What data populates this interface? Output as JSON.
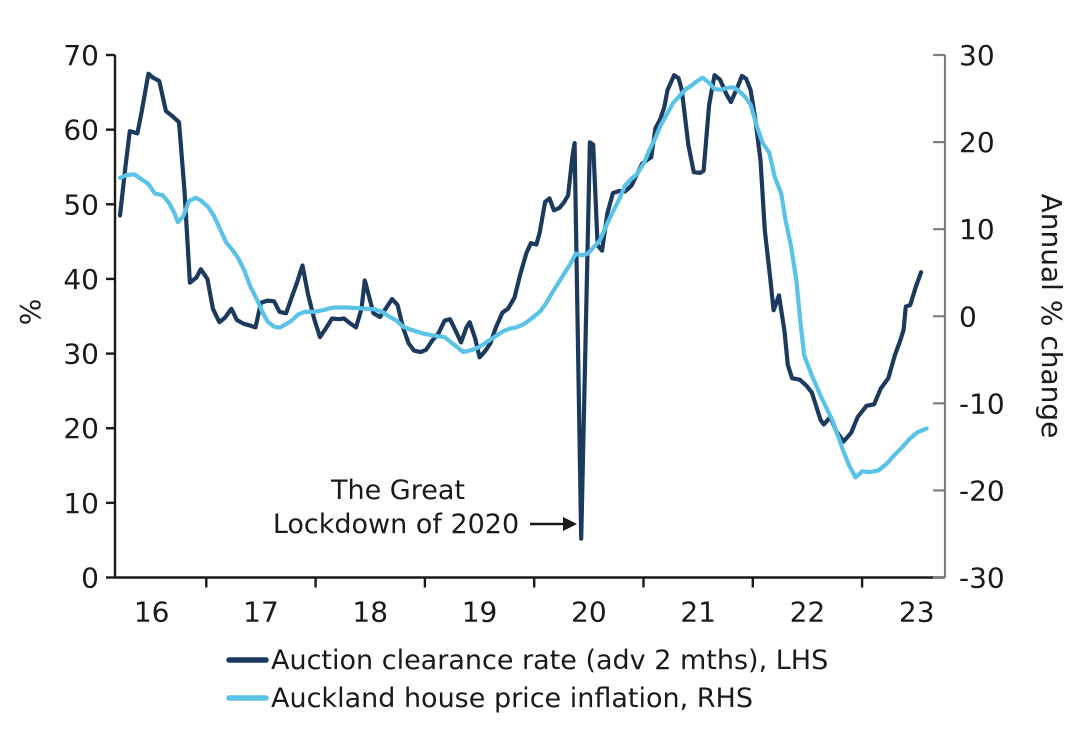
{
  "chart_data": {
    "type": "line",
    "title": "",
    "left_axis": {
      "label": "%",
      "min": 0,
      "max": 70,
      "ticks": [
        0,
        10,
        20,
        30,
        40,
        50,
        60,
        70
      ]
    },
    "right_axis": {
      "label": "Annual % change",
      "min": -30,
      "max": 30,
      "ticks": [
        -30,
        -20,
        -10,
        0,
        10,
        20,
        30
      ]
    },
    "x_axis": {
      "tick_years": [
        2017,
        2018,
        2019,
        2020,
        2021,
        2022,
        2023
      ],
      "labels": [
        {
          "year": 2016,
          "text": "16"
        },
        {
          "year": 2017,
          "text": "17"
        },
        {
          "year": 2018,
          "text": "18"
        },
        {
          "year": 2019,
          "text": "19"
        },
        {
          "year": 2020,
          "text": "20"
        },
        {
          "year": 2021,
          "text": "21"
        },
        {
          "year": 2022,
          "text": "22"
        },
        {
          "year": 2023,
          "text": "23"
        }
      ]
    },
    "grid": false,
    "legend_position": "bottom",
    "series": [
      {
        "name": "Auction clearance rate (adv 2 mths), LHS",
        "axis": "left",
        "color": "#1C3A5E",
        "points": [
          [
            2016.21,
            48.5
          ],
          [
            2016.26,
            55.0
          ],
          [
            2016.3,
            59.8
          ],
          [
            2016.37,
            59.5
          ],
          [
            2016.41,
            62.5
          ],
          [
            2016.47,
            67.5
          ],
          [
            2016.51,
            67.0
          ],
          [
            2016.57,
            66.5
          ],
          [
            2016.63,
            62.5
          ],
          [
            2016.69,
            61.8
          ],
          [
            2016.75,
            61.0
          ],
          [
            2016.8,
            52.0
          ],
          [
            2016.85,
            39.5
          ],
          [
            2016.91,
            40.2
          ],
          [
            2016.95,
            41.3
          ],
          [
            2017.01,
            40.0
          ],
          [
            2017.06,
            36.0
          ],
          [
            2017.12,
            34.2
          ],
          [
            2017.17,
            34.8
          ],
          [
            2017.23,
            36.0
          ],
          [
            2017.28,
            34.5
          ],
          [
            2017.34,
            34.0
          ],
          [
            2017.39,
            33.8
          ],
          [
            2017.45,
            33.5
          ],
          [
            2017.5,
            36.8
          ],
          [
            2017.56,
            37.1
          ],
          [
            2017.62,
            37.0
          ],
          [
            2017.67,
            35.6
          ],
          [
            2017.73,
            35.4
          ],
          [
            2017.78,
            37.5
          ],
          [
            2017.83,
            39.5
          ],
          [
            2017.88,
            41.8
          ],
          [
            2017.93,
            38.0
          ],
          [
            2017.99,
            34.5
          ],
          [
            2018.04,
            32.2
          ],
          [
            2018.1,
            33.5
          ],
          [
            2018.15,
            34.7
          ],
          [
            2018.21,
            34.6
          ],
          [
            2018.26,
            34.7
          ],
          [
            2018.32,
            34.0
          ],
          [
            2018.37,
            33.5
          ],
          [
            2018.42,
            36.0
          ],
          [
            2018.45,
            39.8
          ],
          [
            2018.5,
            37.0
          ],
          [
            2018.53,
            35.4
          ],
          [
            2018.59,
            34.9
          ],
          [
            2018.64,
            36.0
          ],
          [
            2018.7,
            37.3
          ],
          [
            2018.75,
            36.5
          ],
          [
            2018.8,
            33.5
          ],
          [
            2018.85,
            31.4
          ],
          [
            2018.9,
            30.4
          ],
          [
            2018.96,
            30.2
          ],
          [
            2019.01,
            30.5
          ],
          [
            2019.07,
            31.8
          ],
          [
            2019.12,
            32.6
          ],
          [
            2019.18,
            34.4
          ],
          [
            2019.23,
            34.6
          ],
          [
            2019.29,
            32.8
          ],
          [
            2019.33,
            31.5
          ],
          [
            2019.38,
            33.5
          ],
          [
            2019.41,
            34.2
          ],
          [
            2019.46,
            32.0
          ],
          [
            2019.5,
            29.5
          ],
          [
            2019.55,
            30.3
          ],
          [
            2019.6,
            31.4
          ],
          [
            2019.65,
            33.5
          ],
          [
            2019.71,
            35.5
          ],
          [
            2019.76,
            36.0
          ],
          [
            2019.82,
            37.5
          ],
          [
            2019.87,
            40.5
          ],
          [
            2019.93,
            43.5
          ],
          [
            2019.97,
            44.8
          ],
          [
            2020.02,
            44.6
          ],
          [
            2020.05,
            46.2
          ],
          [
            2020.1,
            50.3
          ],
          [
            2020.14,
            50.8
          ],
          [
            2020.18,
            49.2
          ],
          [
            2020.23,
            49.5
          ],
          [
            2020.27,
            50.2
          ],
          [
            2020.31,
            51.2
          ],
          [
            2020.35,
            56.5
          ],
          [
            2020.37,
            58.2
          ],
          [
            2020.43,
            5.2
          ],
          [
            2020.51,
            58.3
          ],
          [
            2020.54,
            58.0
          ],
          [
            2020.58,
            44.5
          ],
          [
            2020.62,
            43.8
          ],
          [
            2020.67,
            48.8
          ],
          [
            2020.72,
            51.5
          ],
          [
            2020.78,
            51.8
          ],
          [
            2020.83,
            51.7
          ],
          [
            2020.89,
            52.5
          ],
          [
            2020.94,
            54.0
          ],
          [
            2020.99,
            55.5
          ],
          [
            2021.03,
            55.9
          ],
          [
            2021.07,
            56.3
          ],
          [
            2021.11,
            60.2
          ],
          [
            2021.15,
            61.3
          ],
          [
            2021.19,
            63.0
          ],
          [
            2021.22,
            65.3
          ],
          [
            2021.28,
            67.3
          ],
          [
            2021.32,
            66.9
          ],
          [
            2021.35,
            65.3
          ],
          [
            2021.41,
            58.0
          ],
          [
            2021.46,
            54.3
          ],
          [
            2021.52,
            54.2
          ],
          [
            2021.55,
            54.5
          ],
          [
            2021.6,
            63.3
          ],
          [
            2021.65,
            67.3
          ],
          [
            2021.7,
            66.7
          ],
          [
            2021.76,
            64.7
          ],
          [
            2021.8,
            63.7
          ],
          [
            2021.86,
            65.7
          ],
          [
            2021.9,
            67.2
          ],
          [
            2021.94,
            66.8
          ],
          [
            2021.98,
            65.3
          ],
          [
            2022.02,
            61.7
          ],
          [
            2022.07,
            55.9
          ],
          [
            2022.11,
            46.5
          ],
          [
            2022.16,
            40.0
          ],
          [
            2022.19,
            35.8
          ],
          [
            2022.24,
            37.8
          ],
          [
            2022.29,
            33.0
          ],
          [
            2022.32,
            28.5
          ],
          [
            2022.36,
            26.7
          ],
          [
            2022.43,
            26.5
          ],
          [
            2022.49,
            25.7
          ],
          [
            2022.54,
            24.8
          ],
          [
            2022.62,
            21.1
          ],
          [
            2022.65,
            20.5
          ],
          [
            2022.71,
            21.5
          ],
          [
            2022.76,
            19.7
          ],
          [
            2022.83,
            18.2
          ],
          [
            2022.9,
            19.4
          ],
          [
            2022.96,
            21.5
          ],
          [
            2023.04,
            23.0
          ],
          [
            2023.11,
            23.2
          ],
          [
            2023.17,
            25.3
          ],
          [
            2023.24,
            26.7
          ],
          [
            2023.3,
            29.8
          ],
          [
            2023.35,
            31.8
          ],
          [
            2023.38,
            33.2
          ],
          [
            2023.4,
            36.3
          ],
          [
            2023.44,
            36.5
          ],
          [
            2023.49,
            38.9
          ],
          [
            2023.54,
            40.9
          ]
        ]
      },
      {
        "name": "Auckland house price inflation, RHS",
        "axis": "right",
        "color": "#5BC2E7",
        "points": [
          [
            2016.21,
            15.9
          ],
          [
            2016.27,
            16.2
          ],
          [
            2016.34,
            16.3
          ],
          [
            2016.4,
            15.8
          ],
          [
            2016.47,
            15.2
          ],
          [
            2016.53,
            14.1
          ],
          [
            2016.6,
            13.9
          ],
          [
            2016.66,
            13.0
          ],
          [
            2016.71,
            11.8
          ],
          [
            2016.74,
            10.8
          ],
          [
            2016.79,
            11.5
          ],
          [
            2016.84,
            13.2
          ],
          [
            2016.9,
            13.6
          ],
          [
            2016.95,
            13.3
          ],
          [
            2017.02,
            12.5
          ],
          [
            2017.07,
            11.5
          ],
          [
            2017.13,
            9.9
          ],
          [
            2017.18,
            8.5
          ],
          [
            2017.24,
            7.6
          ],
          [
            2017.29,
            6.7
          ],
          [
            2017.35,
            5.2
          ],
          [
            2017.4,
            3.5
          ],
          [
            2017.46,
            2.0
          ],
          [
            2017.51,
            0.6
          ],
          [
            2017.56,
            -0.6
          ],
          [
            2017.62,
            -1.2
          ],
          [
            2017.67,
            -1.3
          ],
          [
            2017.73,
            -0.9
          ],
          [
            2017.78,
            -0.5
          ],
          [
            2017.84,
            0.2
          ],
          [
            2017.9,
            0.5
          ],
          [
            2017.97,
            0.5
          ],
          [
            2018.03,
            0.6
          ],
          [
            2018.1,
            0.8
          ],
          [
            2018.16,
            1.0
          ],
          [
            2018.29,
            1.0
          ],
          [
            2018.42,
            0.9
          ],
          [
            2018.54,
            0.8
          ],
          [
            2018.61,
            0.5
          ],
          [
            2018.67,
            0.0
          ],
          [
            2018.74,
            -0.5
          ],
          [
            2018.8,
            -1.2
          ],
          [
            2018.86,
            -1.5
          ],
          [
            2018.99,
            -2.0
          ],
          [
            2019.12,
            -2.3
          ],
          [
            2019.18,
            -2.4
          ],
          [
            2019.24,
            -3.0
          ],
          [
            2019.29,
            -3.5
          ],
          [
            2019.35,
            -4.1
          ],
          [
            2019.39,
            -4.0
          ],
          [
            2019.45,
            -3.8
          ],
          [
            2019.5,
            -3.5
          ],
          [
            2019.56,
            -3.0
          ],
          [
            2019.61,
            -2.6
          ],
          [
            2019.67,
            -2.1
          ],
          [
            2019.72,
            -1.7
          ],
          [
            2019.78,
            -1.4
          ],
          [
            2019.83,
            -1.3
          ],
          [
            2019.89,
            -1.0
          ],
          [
            2019.94,
            -0.6
          ],
          [
            2020.0,
            0.0
          ],
          [
            2020.05,
            0.5
          ],
          [
            2020.11,
            1.5
          ],
          [
            2020.16,
            2.6
          ],
          [
            2020.22,
            3.8
          ],
          [
            2020.27,
            4.8
          ],
          [
            2020.33,
            6.0
          ],
          [
            2020.38,
            7.2
          ],
          [
            2020.44,
            7.0
          ],
          [
            2020.49,
            7.2
          ],
          [
            2020.55,
            8.0
          ],
          [
            2020.6,
            8.7
          ],
          [
            2020.67,
            10.7
          ],
          [
            2020.72,
            12.0
          ],
          [
            2020.78,
            13.5
          ],
          [
            2020.83,
            15.0
          ],
          [
            2020.89,
            15.8
          ],
          [
            2020.94,
            16.3
          ],
          [
            2021.0,
            17.5
          ],
          [
            2021.05,
            19.0
          ],
          [
            2021.11,
            20.5
          ],
          [
            2021.16,
            22.0
          ],
          [
            2021.22,
            23.3
          ],
          [
            2021.27,
            24.5
          ],
          [
            2021.33,
            25.3
          ],
          [
            2021.38,
            26.0
          ],
          [
            2021.44,
            26.5
          ],
          [
            2021.49,
            27.0
          ],
          [
            2021.54,
            27.4
          ],
          [
            2021.6,
            26.8
          ],
          [
            2021.65,
            26.1
          ],
          [
            2021.71,
            26.0
          ],
          [
            2021.76,
            26.2
          ],
          [
            2021.82,
            26.3
          ],
          [
            2021.87,
            25.9
          ],
          [
            2021.93,
            25.2
          ],
          [
            2021.98,
            24.3
          ],
          [
            2022.04,
            21.7
          ],
          [
            2022.09,
            19.9
          ],
          [
            2022.15,
            18.8
          ],
          [
            2022.2,
            16.0
          ],
          [
            2022.26,
            14.1
          ],
          [
            2022.3,
            11.0
          ],
          [
            2022.35,
            8.0
          ],
          [
            2022.4,
            4.0
          ],
          [
            2022.43,
            0.0
          ],
          [
            2022.47,
            -4.5
          ],
          [
            2022.54,
            -6.8
          ],
          [
            2022.63,
            -9.4
          ],
          [
            2022.73,
            -12.0
          ],
          [
            2022.82,
            -15.2
          ],
          [
            2022.88,
            -17.1
          ],
          [
            2022.94,
            -18.5
          ],
          [
            2023.0,
            -17.8
          ],
          [
            2023.07,
            -17.9
          ],
          [
            2023.15,
            -17.7
          ],
          [
            2023.22,
            -17.0
          ],
          [
            2023.29,
            -16.0
          ],
          [
            2023.37,
            -15.0
          ],
          [
            2023.44,
            -14.0
          ],
          [
            2023.51,
            -13.3
          ],
          [
            2023.59,
            -12.9
          ]
        ]
      }
    ],
    "annotation": {
      "line1": "The Great",
      "line2": "Lockdown of 2020"
    },
    "colors": {
      "axis_dark": "#1a1a1a",
      "axis_right": "#7f7f7f"
    }
  },
  "legend": {
    "items": [
      {
        "label": "Auction clearance rate (adv 2 mths), LHS"
      },
      {
        "label": "Auckland house price inflation, RHS"
      }
    ]
  }
}
